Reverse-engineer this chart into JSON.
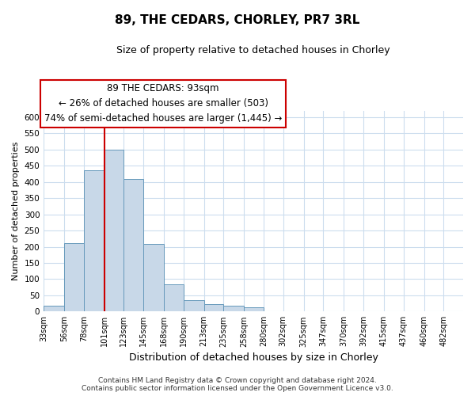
{
  "title": "89, THE CEDARS, CHORLEY, PR7 3RL",
  "subtitle": "Size of property relative to detached houses in Chorley",
  "xlabel": "Distribution of detached houses by size in Chorley",
  "ylabel": "Number of detached properties",
  "footnote1": "Contains HM Land Registry data © Crown copyright and database right 2024.",
  "footnote2": "Contains public sector information licensed under the Open Government Licence v3.0.",
  "bar_labels": [
    "33sqm",
    "56sqm",
    "78sqm",
    "101sqm",
    "123sqm",
    "145sqm",
    "168sqm",
    "190sqm",
    "213sqm",
    "235sqm",
    "258sqm",
    "280sqm",
    "302sqm",
    "325sqm",
    "347sqm",
    "370sqm",
    "392sqm",
    "415sqm",
    "437sqm",
    "460sqm",
    "482sqm"
  ],
  "bar_values": [
    18,
    212,
    435,
    500,
    408,
    209,
    84,
    35,
    22,
    18,
    12,
    0,
    0,
    0,
    0,
    0,
    0,
    0,
    0,
    0,
    2
  ],
  "bar_color": "#c8d8e8",
  "bar_edge_color": "#6699bb",
  "ylim": [
    0,
    620
  ],
  "yticks": [
    0,
    50,
    100,
    150,
    200,
    250,
    300,
    350,
    400,
    450,
    500,
    550,
    600
  ],
  "annotation_title": "89 THE CEDARS: 93sqm",
  "annotation_line1": "← 26% of detached houses are smaller (503)",
  "annotation_line2": "74% of semi-detached houses are larger (1,445) →",
  "vline_color": "#cc0000",
  "background_color": "#ffffff",
  "grid_color": "#ccddee",
  "title_fontsize": 11,
  "subtitle_fontsize": 9,
  "annot_fontsize": 8.5,
  "footnote_fontsize": 6.5,
  "ylabel_fontsize": 8,
  "xlabel_fontsize": 9
}
